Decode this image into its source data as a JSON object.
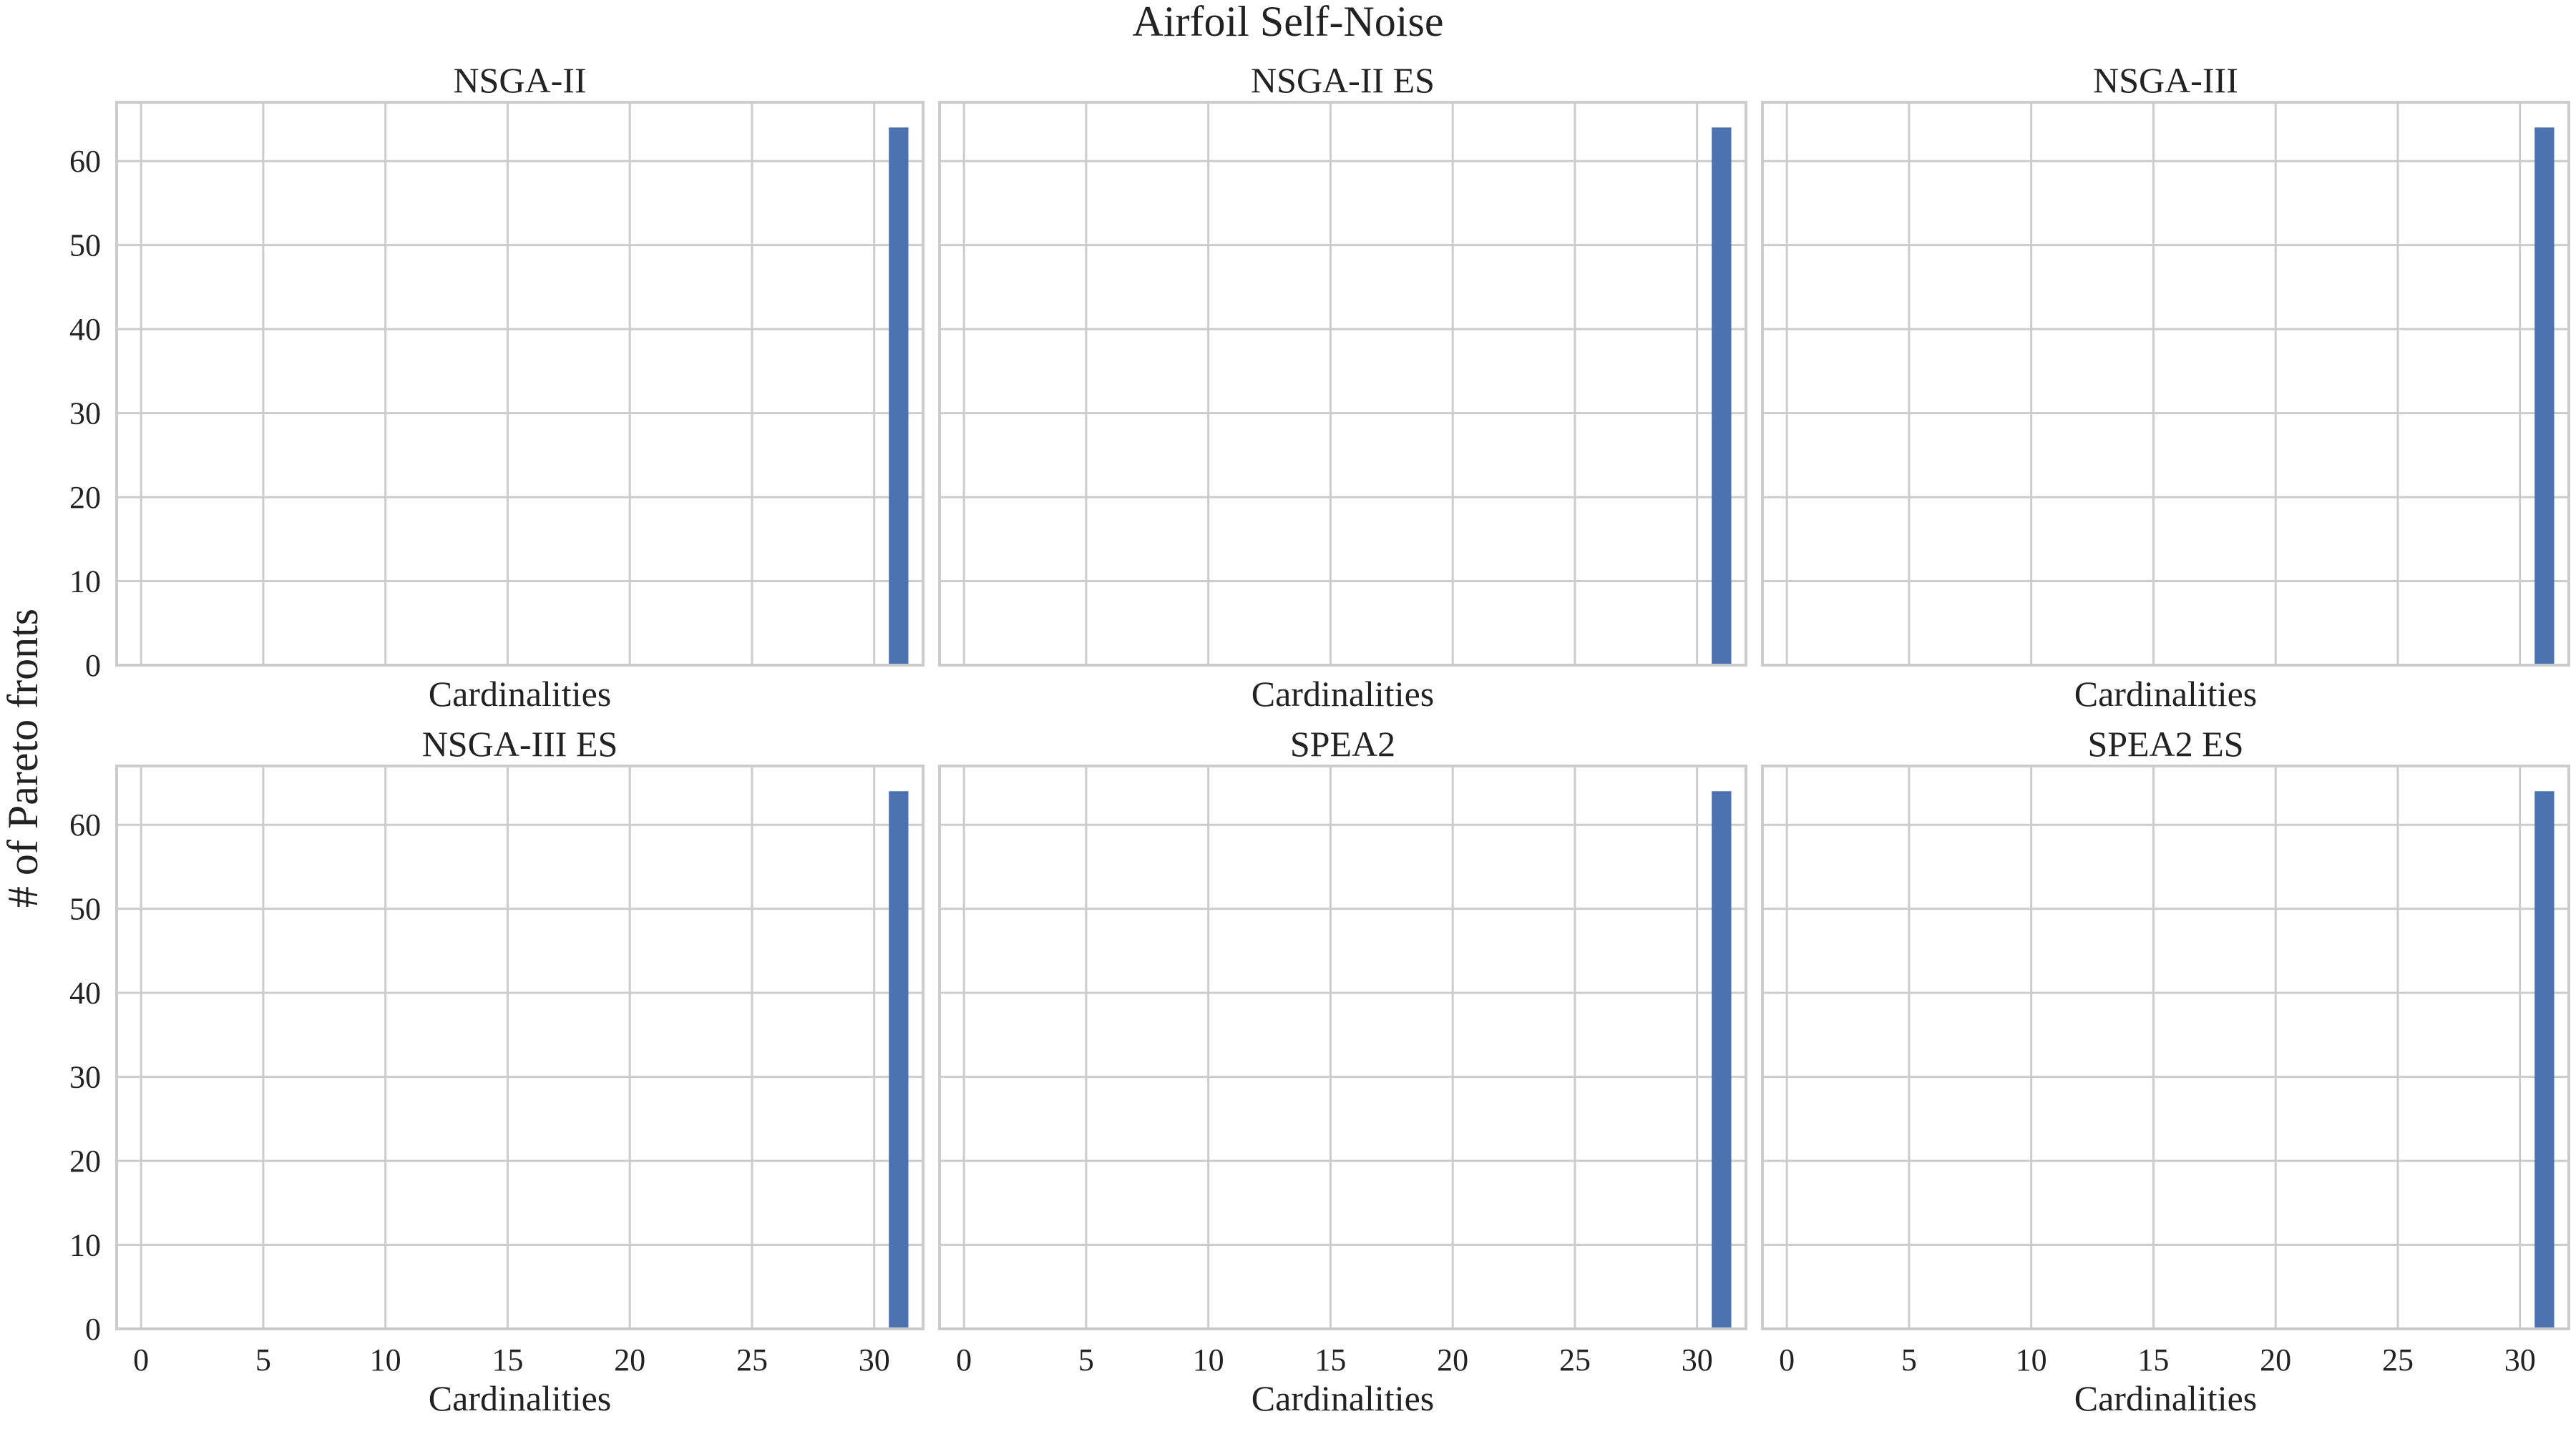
{
  "figure": {
    "title": "Airfoil Self-Noise",
    "ylabel": "# of Pareto fronts"
  },
  "colors": {
    "bar": "#4c72b0",
    "grid": "#cccccc",
    "frame": "#cccccc",
    "background": "#ffffff",
    "text": "#222222"
  },
  "chart_data": [
    {
      "type": "bar",
      "title": "NSGA-II",
      "xlabel": "Cardinalities",
      "x": [
        31
      ],
      "values": [
        64
      ],
      "xlim": [
        -1,
        32
      ],
      "ylim": [
        0,
        67
      ],
      "xticks": [
        "0",
        "5",
        "10",
        "15",
        "20",
        "25",
        "30"
      ],
      "yticks": [
        "0",
        "10",
        "20",
        "30",
        "40",
        "50",
        "60"
      ],
      "show_xticklabels": false,
      "show_yticklabels": true,
      "grid": true
    },
    {
      "type": "bar",
      "title": "NSGA-II ES",
      "xlabel": "Cardinalities",
      "x": [
        31
      ],
      "values": [
        64
      ],
      "xlim": [
        -1,
        32
      ],
      "ylim": [
        0,
        67
      ],
      "xticks": [
        "0",
        "5",
        "10",
        "15",
        "20",
        "25",
        "30"
      ],
      "yticks": [
        "0",
        "10",
        "20",
        "30",
        "40",
        "50",
        "60"
      ],
      "show_xticklabels": false,
      "show_yticklabels": false,
      "grid": true
    },
    {
      "type": "bar",
      "title": "NSGA-III",
      "xlabel": "Cardinalities",
      "x": [
        31
      ],
      "values": [
        64
      ],
      "xlim": [
        -1,
        32
      ],
      "ylim": [
        0,
        67
      ],
      "xticks": [
        "0",
        "5",
        "10",
        "15",
        "20",
        "25",
        "30"
      ],
      "yticks": [
        "0",
        "10",
        "20",
        "30",
        "40",
        "50",
        "60"
      ],
      "show_xticklabels": false,
      "show_yticklabels": false,
      "grid": true
    },
    {
      "type": "bar",
      "title": "NSGA-III ES",
      "xlabel": "Cardinalities",
      "x": [
        31
      ],
      "values": [
        64
      ],
      "xlim": [
        -1,
        32
      ],
      "ylim": [
        0,
        67
      ],
      "xticks": [
        "0",
        "5",
        "10",
        "15",
        "20",
        "25",
        "30"
      ],
      "yticks": [
        "0",
        "10",
        "20",
        "30",
        "40",
        "50",
        "60"
      ],
      "show_xticklabels": true,
      "show_yticklabels": true,
      "grid": true
    },
    {
      "type": "bar",
      "title": "SPEA2",
      "xlabel": "Cardinalities",
      "x": [
        31
      ],
      "values": [
        64
      ],
      "xlim": [
        -1,
        32
      ],
      "ylim": [
        0,
        67
      ],
      "xticks": [
        "0",
        "5",
        "10",
        "15",
        "20",
        "25",
        "30"
      ],
      "yticks": [
        "0",
        "10",
        "20",
        "30",
        "40",
        "50",
        "60"
      ],
      "show_xticklabels": true,
      "show_yticklabels": false,
      "grid": true
    },
    {
      "type": "bar",
      "title": "SPEA2 ES",
      "xlabel": "Cardinalities",
      "x": [
        31
      ],
      "values": [
        64
      ],
      "xlim": [
        -1,
        32
      ],
      "ylim": [
        0,
        67
      ],
      "xticks": [
        "0",
        "5",
        "10",
        "15",
        "20",
        "25",
        "30"
      ],
      "yticks": [
        "0",
        "10",
        "20",
        "30",
        "40",
        "50",
        "60"
      ],
      "show_xticklabels": true,
      "show_yticklabels": false,
      "grid": true
    }
  ]
}
